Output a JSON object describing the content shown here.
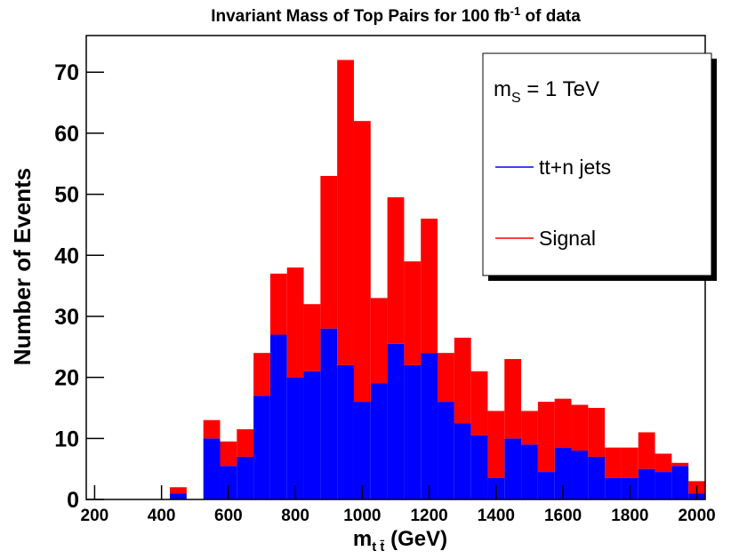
{
  "chart_data": {
    "type": "stacked_histogram",
    "title": [
      "Invariant Mass of Top Pairs for 100 fb",
      "-1",
      " of data"
    ],
    "x_label": [
      "m",
      "t t̄",
      " (GeV)"
    ],
    "y_label": "Number of Events",
    "annotation": [
      "m",
      "S",
      " = 1 TeV"
    ],
    "bins": [
      175,
      225,
      275,
      325,
      375,
      425,
      475,
      525,
      575,
      625,
      675,
      725,
      775,
      825,
      875,
      925,
      975,
      1025,
      1075,
      1125,
      1175,
      1225,
      1275,
      1325,
      1375,
      1425,
      1475,
      1525,
      1575,
      1625,
      1675,
      1725,
      1775,
      1825,
      1875,
      1925,
      1975,
      2025
    ],
    "series": [
      {
        "name": "tt+n jets",
        "color": "#0000ff",
        "values": [
          0,
          0,
          0,
          0,
          0,
          1,
          0,
          10,
          5.5,
          7,
          17,
          27,
          20,
          21,
          28,
          22,
          16,
          19,
          25.5,
          22,
          24,
          16,
          12.5,
          10.5,
          3.5,
          10,
          9,
          4.5,
          8.5,
          8,
          7,
          3.5,
          3.5,
          5,
          4.5,
          5.5,
          1
        ]
      },
      {
        "name": "Signal",
        "color": "#ff0000",
        "values": [
          0,
          0,
          0,
          0,
          0,
          1,
          0,
          3,
          4,
          4.5,
          7,
          10,
          18,
          11,
          25,
          50,
          46,
          14,
          24,
          17,
          22,
          8,
          14,
          10.5,
          11,
          13,
          5.5,
          11.5,
          8,
          7.5,
          8,
          5,
          5,
          6,
          3,
          0.5,
          2
        ]
      }
    ],
    "xlim": [
      175,
      2025
    ],
    "ylim": [
      0,
      76
    ],
    "xticks": [
      200,
      400,
      600,
      800,
      1000,
      1200,
      1400,
      1600,
      1800,
      2000
    ],
    "yticks": [
      0,
      10,
      20,
      30,
      40,
      50,
      60,
      70
    ],
    "legend": "upper right"
  }
}
